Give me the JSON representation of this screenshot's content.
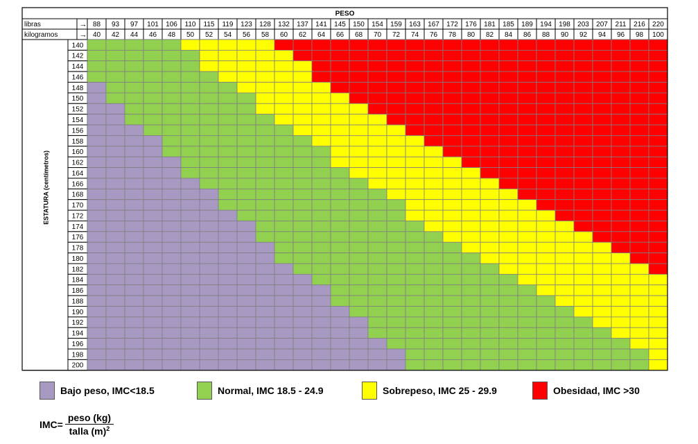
{
  "chart_data": {
    "type": "heatmap",
    "title": "PESO",
    "row_axis_label": "ESTATURA (centímetros)",
    "header_rows": [
      {
        "label": "libras",
        "arrow": "→",
        "values": [
          "88",
          "93",
          "97",
          "101",
          "106",
          "110",
          "115",
          "119",
          "123",
          "128",
          "132",
          "137",
          "141",
          "145",
          "150",
          "154",
          "159",
          "163",
          "167",
          "172",
          "176",
          "181",
          "185",
          "189",
          "194",
          "198",
          "203",
          "207",
          "211",
          "216",
          "220"
        ]
      },
      {
        "label": "kilogramos",
        "arrow": "→",
        "values": [
          "40",
          "42",
          "44",
          "46",
          "48",
          "50",
          "52",
          "54",
          "56",
          "58",
          "60",
          "62",
          "64",
          "66",
          "68",
          "70",
          "72",
          "74",
          "76",
          "78",
          "80",
          "82",
          "84",
          "86",
          "88",
          "90",
          "92",
          "94",
          "96",
          "98",
          "100"
        ]
      }
    ],
    "x_kg": [
      40,
      42,
      44,
      46,
      48,
      50,
      52,
      54,
      56,
      58,
      60,
      62,
      64,
      66,
      68,
      70,
      72,
      74,
      76,
      78,
      80,
      82,
      84,
      86,
      88,
      90,
      92,
      94,
      96,
      98,
      100
    ],
    "y_cm": [
      140,
      142,
      144,
      146,
      148,
      150,
      152,
      154,
      156,
      158,
      160,
      162,
      164,
      166,
      168,
      170,
      172,
      174,
      176,
      178,
      180,
      182,
      184,
      186,
      188,
      190,
      192,
      194,
      196,
      198,
      200
    ],
    "category_thresholds": [
      18.5,
      25,
      30
    ],
    "categories": [
      "Bajo peso",
      "Normal",
      "Sobrepeso",
      "Obesidad"
    ],
    "colors": {
      "bajo": "#a899c2",
      "normal": "#92d050",
      "sobrepeso": "#ffff00",
      "obesidad": "#ff0000"
    }
  },
  "legend": [
    {
      "label": "Bajo peso, IMC<18.5",
      "color": "#a899c2"
    },
    {
      "label": "Normal, IMC 18.5 - 24.9",
      "color": "#92d050"
    },
    {
      "label": "Sobrepeso, IMC 25 - 29.9",
      "color": "#ffff00"
    },
    {
      "label": "Obesidad, IMC >30",
      "color": "#ff0000"
    }
  ],
  "formula": {
    "lhs": "IMC=",
    "numerator": "peso (kg)",
    "denominator": "talla (m)",
    "exponent": "2"
  }
}
